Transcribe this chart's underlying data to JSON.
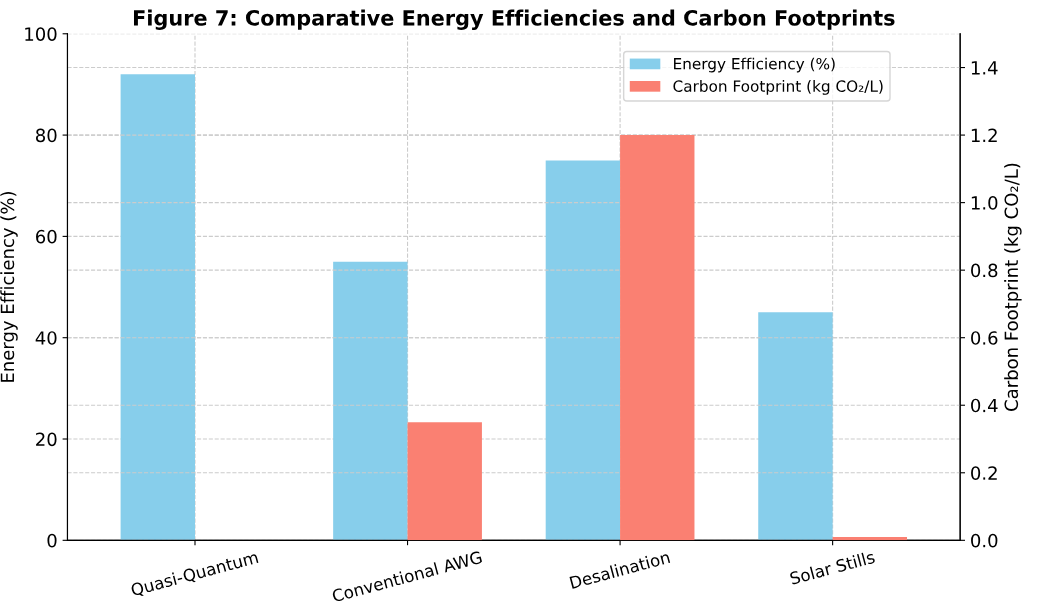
{
  "chart_data": {
    "type": "bar",
    "title": "Figure 7: Comparative Energy Efficiencies and Carbon Footprints",
    "categories": [
      "Quasi-Quantum",
      "Conventional AWG",
      "Desalination",
      "Solar Stills"
    ],
    "series": [
      {
        "name": "Energy Efficiency (%)",
        "color": "#87ceeb",
        "values": [
          92,
          55,
          75,
          45
        ]
      },
      {
        "name": "Carbon Footprint (kg CO₂/L)",
        "color": "#fa8072",
        "values": [
          0,
          0.35,
          1.2,
          0.01
        ],
        "axis": "y2"
      }
    ],
    "ylabel": "Energy Efficiency (%)",
    "y2label": "Carbon Footprint (kg CO₂/L)",
    "ylim": [
      0,
      100
    ],
    "yticks": [
      0,
      20,
      40,
      60,
      80,
      100
    ],
    "y2lim": [
      0,
      1.5
    ],
    "y2ticks": [
      {
        "value": 0,
        "label": "0.0"
      },
      {
        "value": 0.2,
        "label": "0.2"
      },
      {
        "value": 0.4,
        "label": "0.4"
      },
      {
        "value": 0.6,
        "label": "0.6"
      },
      {
        "value": 0.8,
        "label": "0.8"
      },
      {
        "value": 1.0,
        "label": "1.0"
      },
      {
        "value": 1.2,
        "label": "1.2"
      },
      {
        "value": 1.4,
        "label": "1.4"
      }
    ],
    "grid": true,
    "legend": "top right"
  }
}
